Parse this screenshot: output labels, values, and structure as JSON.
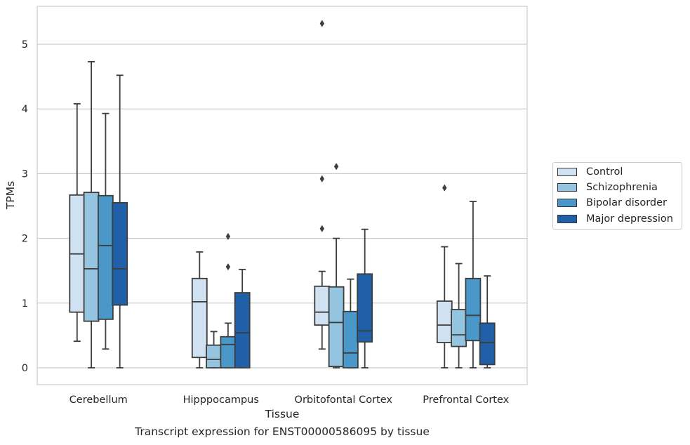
{
  "caption": "Transcript expression for ENST00000586095 by tissue",
  "colors": {
    "background": "#ffffff",
    "grid": "#cccccc",
    "frame": "#cccccc",
    "box_edge": "#3d3d3d",
    "text": "#262626"
  },
  "chart_data": {
    "type": "box",
    "xlabel": "Tissue",
    "ylabel": "TPMs",
    "ylim": [
      -0.25,
      5.6
    ],
    "yticks": [
      0,
      1,
      2,
      3,
      4,
      5
    ],
    "grid": "horizontal",
    "legend_position": "right",
    "categories": [
      "Cerebellum",
      "Hipppocampus",
      "Orbitofontal Cortex",
      "Prefrontal Cortex"
    ],
    "series": [
      {
        "name": "Control",
        "color": "#d0e1f2",
        "boxes": [
          {
            "whislo": 0.41,
            "q1": 0.86,
            "med": 1.76,
            "q3": 2.67,
            "whishi": 4.08,
            "fliers": []
          },
          {
            "whislo": 0.0,
            "q1": 0.16,
            "med": 1.02,
            "q3": 1.38,
            "whishi": 1.79,
            "fliers": []
          },
          {
            "whislo": 0.29,
            "q1": 0.66,
            "med": 0.86,
            "q3": 1.26,
            "whishi": 1.49,
            "fliers": [
              2.15,
              2.92,
              5.32
            ]
          },
          {
            "whislo": 0.0,
            "q1": 0.39,
            "med": 0.66,
            "q3": 1.03,
            "whishi": 1.87,
            "fliers": [
              2.78
            ]
          }
        ]
      },
      {
        "name": "Schizophrenia",
        "color": "#94c4df",
        "boxes": [
          {
            "whislo": 0.0,
            "q1": 0.72,
            "med": 1.53,
            "q3": 2.71,
            "whishi": 4.73,
            "fliers": []
          },
          {
            "whislo": 0.0,
            "q1": 0.0,
            "med": 0.13,
            "q3": 0.35,
            "whishi": 0.56,
            "fliers": []
          },
          {
            "whislo": 0.0,
            "q1": 0.02,
            "med": 0.7,
            "q3": 1.25,
            "whishi": 2.0,
            "fliers": [
              3.11
            ]
          },
          {
            "whislo": 0.0,
            "q1": 0.33,
            "med": 0.51,
            "q3": 0.9,
            "whishi": 1.61,
            "fliers": []
          }
        ]
      },
      {
        "name": "Bipolar disorder",
        "color": "#4a98c9",
        "boxes": [
          {
            "whislo": 0.29,
            "q1": 0.75,
            "med": 1.89,
            "q3": 2.66,
            "whishi": 3.93,
            "fliers": []
          },
          {
            "whislo": 0.0,
            "q1": 0.0,
            "med": 0.36,
            "q3": 0.48,
            "whishi": 0.69,
            "fliers": [
              1.56,
              2.03
            ]
          },
          {
            "whislo": 0.0,
            "q1": 0.0,
            "med": 0.23,
            "q3": 0.87,
            "whishi": 1.37,
            "fliers": []
          },
          {
            "whislo": 0.0,
            "q1": 0.42,
            "med": 0.81,
            "q3": 1.38,
            "whishi": 2.57,
            "fliers": []
          }
        ]
      },
      {
        "name": "Major depression",
        "color": "#2060a8",
        "boxes": [
          {
            "whislo": 0.0,
            "q1": 0.97,
            "med": 1.53,
            "q3": 2.55,
            "whishi": 4.52,
            "fliers": []
          },
          {
            "whislo": 0.0,
            "q1": 0.0,
            "med": 0.54,
            "q3": 1.16,
            "whishi": 1.52,
            "fliers": []
          },
          {
            "whislo": 0.0,
            "q1": 0.4,
            "med": 0.57,
            "q3": 1.45,
            "whishi": 2.14,
            "fliers": []
          },
          {
            "whislo": 0.0,
            "q1": 0.05,
            "med": 0.39,
            "q3": 0.69,
            "whishi": 1.42,
            "fliers": []
          }
        ]
      }
    ]
  }
}
